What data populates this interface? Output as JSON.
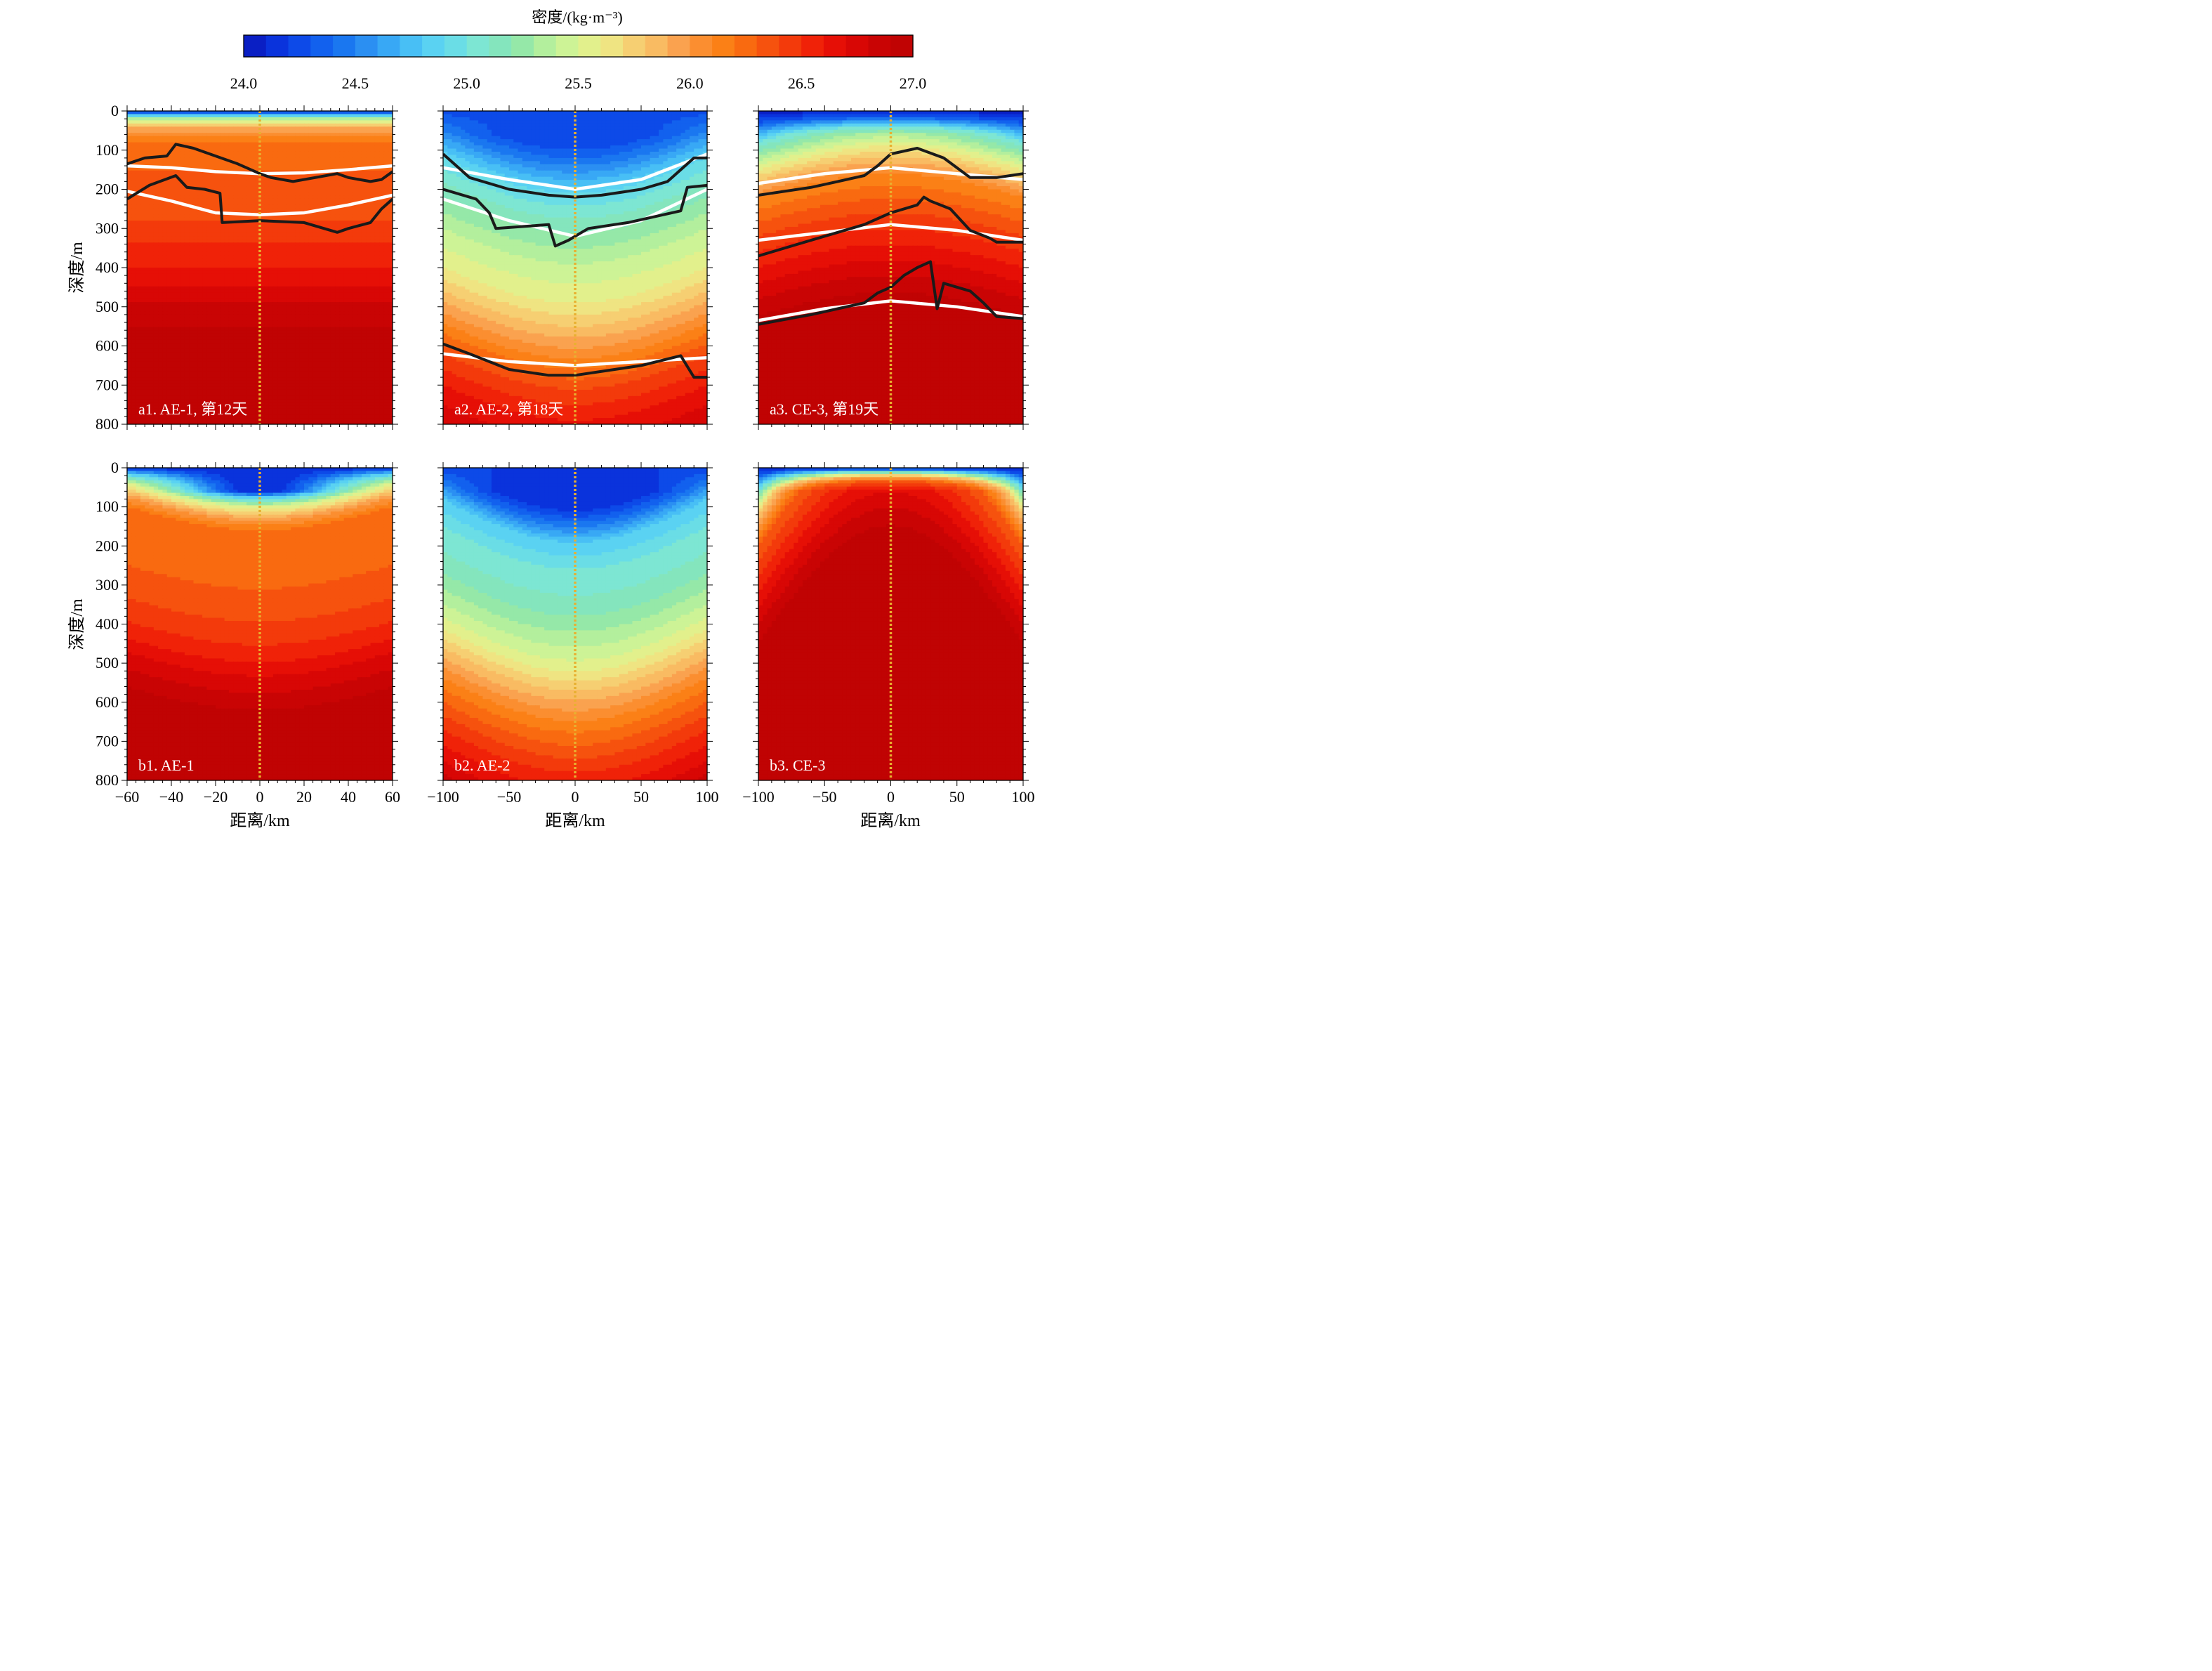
{
  "colorbar": {
    "title": "密度/(kg·m⁻³)",
    "min": 24.0,
    "max": 27.0,
    "step": 0.1,
    "tick_labels": [
      "24.0",
      "24.5",
      "25.0",
      "25.5",
      "26.0",
      "26.5",
      "27.0"
    ],
    "colors": [
      "#0a1fc4",
      "#0a33dc",
      "#0d4ae8",
      "#1261ee",
      "#1a77f0",
      "#2b8ff2",
      "#38a8f5",
      "#48bff5",
      "#5ad2f2",
      "#6adde6",
      "#7de6d3",
      "#84e5bd",
      "#95e8a8",
      "#b3ef9d",
      "#cdf396",
      "#e2f08c",
      "#efe482",
      "#f6cf72",
      "#f9bb62",
      "#faa24f",
      "#fb8e30",
      "#fb8016",
      "#f96a10",
      "#f6520e",
      "#f33a0b",
      "#f02208",
      "#e60f06",
      "#d80705",
      "#c90404",
      "#c00303"
    ]
  },
  "y_axis_label": "深度/m",
  "x_axis_label": "距离/km",
  "chart_data": [
    {
      "id": "a1",
      "type": "heatmap",
      "label": "a1. AE-1, 第12天",
      "xlim": [
        -60,
        60
      ],
      "x_ticks": [
        "−60",
        "−40",
        "−20",
        "0",
        "20",
        "40",
        "60"
      ],
      "x_tick_values": [
        -60,
        -40,
        -20,
        0,
        20,
        40,
        60
      ],
      "ylim": [
        0,
        800
      ],
      "y_ticks": [
        "0",
        "100",
        "200",
        "300",
        "400",
        "500",
        "600",
        "700",
        "800"
      ],
      "y_reversed": true,
      "density_profile": [
        [
          0,
          24.05
        ],
        [
          8,
          24.7
        ],
        [
          20,
          25.3
        ],
        [
          40,
          25.9
        ],
        [
          80,
          26.2
        ],
        [
          150,
          26.3
        ],
        [
          260,
          26.35
        ],
        [
          300,
          26.45
        ],
        [
          400,
          26.6
        ],
        [
          480,
          26.78
        ],
        [
          550,
          26.9
        ],
        [
          620,
          26.96
        ],
        [
          800,
          27.0
        ]
      ],
      "curvature": 0,
      "white_contours": [
        {
          "x": [
            -60,
            -40,
            -20,
            0,
            20,
            40,
            60
          ],
          "y": [
            140,
            145,
            155,
            160,
            158,
            150,
            140
          ]
        },
        {
          "x": [
            -60,
            -40,
            -20,
            0,
            20,
            40,
            60
          ],
          "y": [
            205,
            230,
            260,
            265,
            260,
            240,
            215
          ]
        }
      ],
      "black_contours": [
        {
          "x": [
            -60,
            -52,
            -42,
            -38,
            -30,
            -20,
            -10,
            0,
            5,
            15,
            25,
            35,
            40,
            50,
            55,
            60
          ],
          "y": [
            135,
            120,
            115,
            85,
            95,
            115,
            135,
            160,
            170,
            180,
            170,
            160,
            170,
            180,
            175,
            155
          ]
        },
        {
          "x": [
            -60,
            -50,
            -38,
            -33,
            -25,
            -18,
            -17,
            0,
            20,
            35,
            40,
            50,
            55,
            60
          ],
          "y": [
            225,
            190,
            165,
            195,
            200,
            210,
            285,
            280,
            285,
            310,
            300,
            285,
            250,
            225
          ]
        }
      ],
      "center_line_x": 0
    },
    {
      "id": "a2",
      "type": "heatmap",
      "label": "a2. AE-2, 第18天",
      "xlim": [
        -100,
        100
      ],
      "x_ticks": [
        "−100",
        "−50",
        "0",
        "50",
        "100"
      ],
      "x_tick_values": [
        -100,
        -50,
        0,
        50,
        100
      ],
      "ylim": [
        0,
        800
      ],
      "y_ticks": [
        "0",
        "100",
        "200",
        "300",
        "400",
        "500",
        "600",
        "700",
        "800"
      ],
      "y_reversed": true,
      "density_profile": [
        [
          0,
          24.25
        ],
        [
          50,
          24.5
        ],
        [
          120,
          24.9
        ],
        [
          200,
          25.15
        ],
        [
          300,
          25.4
        ],
        [
          400,
          25.6
        ],
        [
          460,
          25.8
        ],
        [
          530,
          26.05
        ],
        [
          620,
          26.4
        ],
        [
          700,
          26.6
        ],
        [
          800,
          26.8
        ]
      ],
      "curvature": 90,
      "white_contours": [
        {
          "x": [
            -100,
            -50,
            0,
            50,
            100
          ],
          "y": [
            145,
            175,
            200,
            175,
            110
          ]
        },
        {
          "x": [
            -100,
            -50,
            0,
            50,
            100
          ],
          "y": [
            225,
            280,
            320,
            280,
            200
          ]
        },
        {
          "x": [
            -100,
            -50,
            0,
            50,
            100
          ],
          "y": [
            620,
            640,
            650,
            640,
            630
          ]
        }
      ],
      "black_contours": [
        {
          "x": [
            -100,
            -80,
            -50,
            -20,
            0,
            20,
            40,
            50,
            70,
            80,
            90,
            100
          ],
          "y": [
            110,
            170,
            200,
            215,
            220,
            215,
            205,
            200,
            180,
            150,
            120,
            120
          ]
        },
        {
          "x": [
            -100,
            -75,
            -65,
            -60,
            -20,
            -15,
            -5,
            5,
            10,
            40,
            80,
            85,
            100
          ],
          "y": [
            200,
            225,
            260,
            300,
            290,
            345,
            330,
            310,
            300,
            285,
            255,
            195,
            190
          ]
        },
        {
          "x": [
            -100,
            -80,
            -50,
            -20,
            0,
            50,
            80,
            90,
            100
          ],
          "y": [
            595,
            620,
            660,
            675,
            675,
            650,
            625,
            680,
            680
          ]
        }
      ],
      "center_line_x": 0
    },
    {
      "id": "a3",
      "type": "heatmap",
      "label": "a3. CE-3, 第19天",
      "xlim": [
        -100,
        100
      ],
      "x_ticks": [
        "−100",
        "−50",
        "0",
        "50",
        "100"
      ],
      "x_tick_values": [
        -100,
        -50,
        0,
        50,
        100
      ],
      "ylim": [
        0,
        800
      ],
      "y_ticks": [
        "0",
        "100",
        "200",
        "300",
        "400",
        "500",
        "600",
        "700",
        "800"
      ],
      "y_reversed": true,
      "density_profile": [
        [
          0,
          24.05
        ],
        [
          30,
          24.3
        ],
        [
          80,
          25.0
        ],
        [
          150,
          25.6
        ],
        [
          220,
          26.1
        ],
        [
          300,
          26.35
        ],
        [
          400,
          26.6
        ],
        [
          500,
          26.85
        ],
        [
          560,
          26.98
        ],
        [
          800,
          27.0
        ]
      ],
      "curvature": -60,
      "white_contours": [
        {
          "x": [
            -100,
            -50,
            0,
            50,
            100
          ],
          "y": [
            185,
            160,
            145,
            160,
            175
          ]
        },
        {
          "x": [
            -100,
            -50,
            0,
            50,
            100
          ],
          "y": [
            330,
            310,
            290,
            305,
            330
          ]
        },
        {
          "x": [
            -100,
            -50,
            0,
            50,
            100
          ],
          "y": [
            535,
            505,
            485,
            500,
            525
          ]
        }
      ],
      "black_contours": [
        {
          "x": [
            -100,
            -60,
            -40,
            -20,
            -10,
            0,
            20,
            40,
            60,
            80,
            100
          ],
          "y": [
            215,
            195,
            180,
            165,
            140,
            110,
            95,
            120,
            170,
            170,
            160
          ]
        },
        {
          "x": [
            -100,
            -70,
            -40,
            -20,
            0,
            20,
            25,
            30,
            45,
            60,
            75,
            80,
            100
          ],
          "y": [
            370,
            340,
            310,
            290,
            260,
            240,
            220,
            230,
            250,
            305,
            325,
            335,
            335
          ]
        },
        {
          "x": [
            -100,
            -60,
            -40,
            -20,
            -10,
            0,
            10,
            20,
            30,
            35,
            40,
            60,
            70,
            80,
            100
          ],
          "y": [
            545,
            520,
            505,
            490,
            465,
            450,
            420,
            400,
            385,
            505,
            440,
            460,
            490,
            525,
            530
          ]
        }
      ],
      "center_line_x": 0
    },
    {
      "id": "b1",
      "type": "heatmap",
      "label": "b1. AE-1",
      "xlim": [
        -60,
        60
      ],
      "x_ticks": [
        "−60",
        "−40",
        "−20",
        "0",
        "20",
        "40",
        "60"
      ],
      "x_tick_values": [
        -60,
        -40,
        -20,
        0,
        20,
        40,
        60
      ],
      "ylim": [
        0,
        800
      ],
      "y_ticks": [
        "0",
        "100",
        "200",
        "300",
        "400",
        "500",
        "600",
        "700",
        "800"
      ],
      "y_reversed": true,
      "density_profile": [
        [
          0,
          24.1
        ],
        [
          15,
          24.8
        ],
        [
          40,
          25.5
        ],
        [
          70,
          25.95
        ],
        [
          100,
          26.2
        ],
        [
          250,
          26.3
        ],
        [
          350,
          26.42
        ],
        [
          420,
          26.55
        ],
        [
          480,
          26.72
        ],
        [
          560,
          26.9
        ],
        [
          650,
          26.97
        ],
        [
          800,
          27.0
        ]
      ],
      "curvature": 60,
      "white_contours": [],
      "black_contours": [],
      "center_line_x": 0
    },
    {
      "id": "b2",
      "type": "heatmap",
      "label": "b2. AE-2",
      "xlim": [
        -100,
        100
      ],
      "x_ticks": [
        "−100",
        "−50",
        "0",
        "50",
        "100"
      ],
      "x_tick_values": [
        -100,
        -50,
        0,
        50,
        100
      ],
      "ylim": [
        0,
        800
      ],
      "y_ticks": [
        "0",
        "100",
        "200",
        "300",
        "400",
        "500",
        "600",
        "700",
        "800"
      ],
      "y_reversed": true,
      "density_profile": [
        [
          0,
          24.2
        ],
        [
          30,
          24.4
        ],
        [
          80,
          24.8
        ],
        [
          150,
          25.0
        ],
        [
          250,
          25.15
        ],
        [
          330,
          25.35
        ],
        [
          400,
          25.55
        ],
        [
          460,
          25.8
        ],
        [
          550,
          26.15
        ],
        [
          650,
          26.45
        ],
        [
          750,
          26.7
        ],
        [
          800,
          26.85
        ]
      ],
      "curvature": 110,
      "white_contours": [],
      "black_contours": [],
      "center_line_x": 0
    },
    {
      "id": "b3",
      "type": "heatmap",
      "label": "b3. CE-3",
      "xlim": [
        -100,
        100
      ],
      "x_ticks": [
        "−100",
        "−50",
        "0",
        "50",
        "100"
      ],
      "x_tick_values": [
        -100,
        -50,
        0,
        50,
        100
      ],
      "ylim": [
        0,
        800
      ],
      "y_ticks": [
        "0",
        "100",
        "200",
        "300",
        "400",
        "500",
        "600",
        "700",
        "800"
      ],
      "y_reversed": true,
      "density_profile": [
        [
          0,
          24.1
        ],
        [
          20,
          24.3
        ],
        [
          60,
          25.0
        ],
        [
          120,
          25.8
        ],
        [
          200,
          26.3
        ],
        [
          300,
          26.55
        ],
        [
          380,
          26.75
        ],
        [
          470,
          26.95
        ],
        [
          800,
          27.0
        ]
      ],
      "curvature": -300,
      "white_contours": [],
      "black_contours": [],
      "center_line_x": 0
    }
  ]
}
